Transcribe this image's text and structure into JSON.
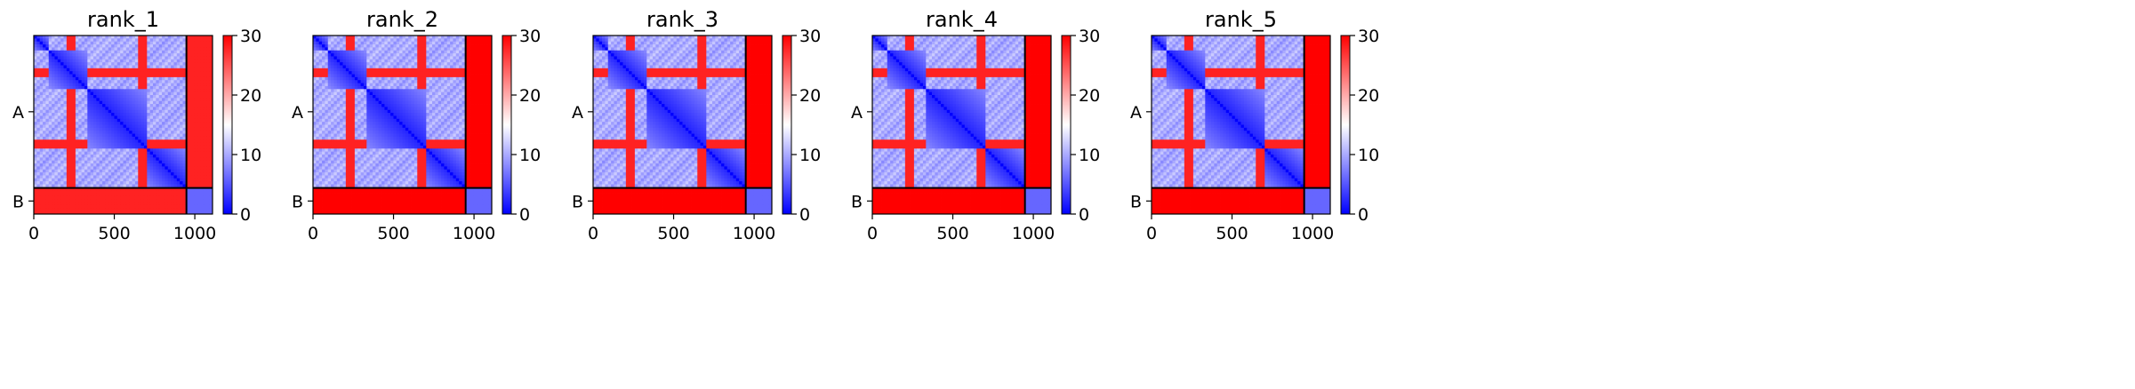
{
  "chart_data": {
    "type": "heatmap",
    "colormap": {
      "name": "bwr",
      "low": "#0000ff",
      "mid": "#ffffff",
      "high": "#ff0000"
    },
    "colorbar": {
      "vmin": 0,
      "vmax": 30,
      "ticks": [
        0,
        10,
        20,
        30
      ]
    },
    "chains": [
      {
        "label": "A",
        "start": 0,
        "end": 948
      },
      {
        "label": "B",
        "start": 948,
        "end": 1110
      }
    ],
    "axis": {
      "xlim": [
        0,
        1110
      ],
      "xticks": [
        0,
        500,
        1000
      ]
    },
    "domains": [
      [
        0,
        100
      ],
      [
        100,
        330
      ],
      [
        330,
        705
      ],
      [
        705,
        948
      ],
      [
        948,
        1110
      ]
    ],
    "panels": [
      {
        "title": "rank_1",
        "offdiag_ab": 28,
        "bb": 6
      },
      {
        "title": "rank_2",
        "offdiag_ab": 30,
        "bb": 6
      },
      {
        "title": "rank_3",
        "offdiag_ab": 30,
        "bb": 6
      },
      {
        "title": "rank_4",
        "offdiag_ab": 30,
        "bb": 6
      },
      {
        "title": "rank_5",
        "offdiag_ab": 30,
        "bb": 6
      }
    ]
  }
}
